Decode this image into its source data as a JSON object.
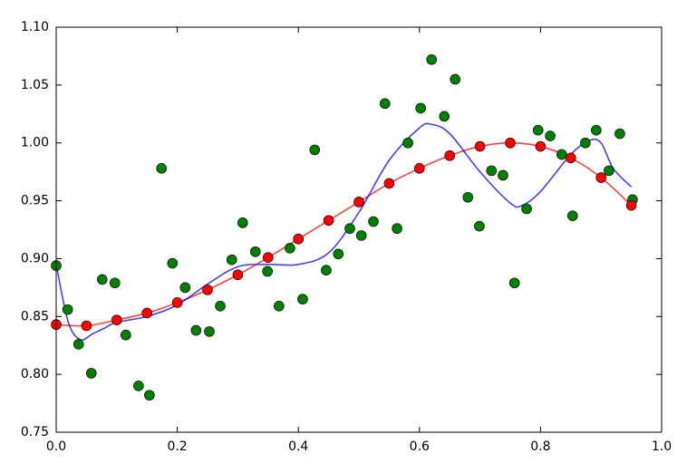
{
  "chart_data": {
    "type": "scatter",
    "xlim": [
      0,
      1.0
    ],
    "ylim": [
      0.75,
      1.1
    ],
    "xticks": [
      {
        "value": 0,
        "label": "0.0"
      },
      {
        "value": 0.2,
        "label": "0.2"
      },
      {
        "value": 0.4,
        "label": "0.4"
      },
      {
        "value": 0.6,
        "label": "0.6"
      },
      {
        "value": 0.8,
        "label": "0.8"
      },
      {
        "value": 1.0,
        "label": "1.0"
      }
    ],
    "yticks": [
      {
        "value": 0.75,
        "label": "0.75"
      },
      {
        "value": 0.8,
        "label": "0.80"
      },
      {
        "value": 0.85,
        "label": "0.85"
      },
      {
        "value": 0.9,
        "label": "0.90"
      },
      {
        "value": 0.95,
        "label": "0.95"
      },
      {
        "value": 1.0,
        "label": "1.00"
      },
      {
        "value": 1.05,
        "label": "1.05"
      },
      {
        "value": 1.1,
        "label": "1.10"
      }
    ],
    "series": [
      {
        "color": "#007f00",
        "mode": "markers",
        "x": [
          0,
          0.019,
          0.037,
          0.058,
          0.076,
          0.097,
          0.115,
          0.136,
          0.154,
          0.174,
          0.192,
          0.213,
          0.231,
          0.253,
          0.271,
          0.29,
          0.308,
          0.329,
          0.349,
          0.368,
          0.386,
          0.407,
          0.427,
          0.446,
          0.466,
          0.485,
          0.504,
          0.524,
          0.543,
          0.563,
          0.581,
          0.602,
          0.62,
          0.641,
          0.659,
          0.68,
          0.699,
          0.719,
          0.738,
          0.757,
          0.777,
          0.796,
          0.816,
          0.835,
          0.853,
          0.874,
          0.892,
          0.913,
          0.931,
          0.952
        ],
        "values": [
          0.894,
          0.856,
          0.826,
          0.801,
          0.882,
          0.879,
          0.834,
          0.79,
          0.782,
          0.978,
          0.896,
          0.875,
          0.838,
          0.837,
          0.859,
          0.899,
          0.931,
          0.906,
          0.889,
          0.859,
          0.909,
          0.865,
          0.994,
          0.89,
          0.904,
          0.926,
          0.92,
          0.932,
          1.034,
          0.926,
          1.0,
          1.03,
          1.072,
          1.023,
          1.055,
          0.953,
          0.928,
          0.976,
          0.972,
          0.879,
          0.943,
          1.011,
          1.006,
          0.99,
          0.937,
          1.0,
          1.011,
          0.976,
          1.008,
          0.951
        ]
      },
      {
        "color": "#ff0000",
        "mode": "lines+markers",
        "x": [
          0,
          0.05,
          0.1,
          0.15,
          0.2,
          0.25,
          0.3,
          0.35,
          0.4,
          0.45,
          0.5,
          0.55,
          0.6,
          0.65,
          0.7,
          0.75,
          0.8,
          0.85,
          0.9,
          0.95
        ],
        "values": [
          0.843,
          0.842,
          0.847,
          0.853,
          0.862,
          0.873,
          0.886,
          0.901,
          0.917,
          0.933,
          0.949,
          0.965,
          0.978,
          0.989,
          0.997,
          1.0,
          0.997,
          0.987,
          0.97,
          0.946
        ]
      },
      {
        "color": "#0000ff",
        "mode": "lines",
        "x": [
          0,
          0.02,
          0.04,
          0.06,
          0.08,
          0.1,
          0.15,
          0.2,
          0.25,
          0.3,
          0.35,
          0.4,
          0.45,
          0.5,
          0.55,
          0.6,
          0.62,
          0.65,
          0.7,
          0.75,
          0.77,
          0.8,
          0.85,
          0.88,
          0.9,
          0.92,
          0.95
        ],
        "values": [
          0.895,
          0.845,
          0.83,
          0.835,
          0.84,
          0.845,
          0.85,
          0.86,
          0.878,
          0.893,
          0.895,
          0.895,
          0.905,
          0.94,
          0.985,
          1.013,
          1.016,
          1.008,
          0.975,
          0.948,
          0.946,
          0.958,
          0.99,
          1.002,
          1.0,
          0.978,
          0.962
        ]
      }
    ]
  }
}
